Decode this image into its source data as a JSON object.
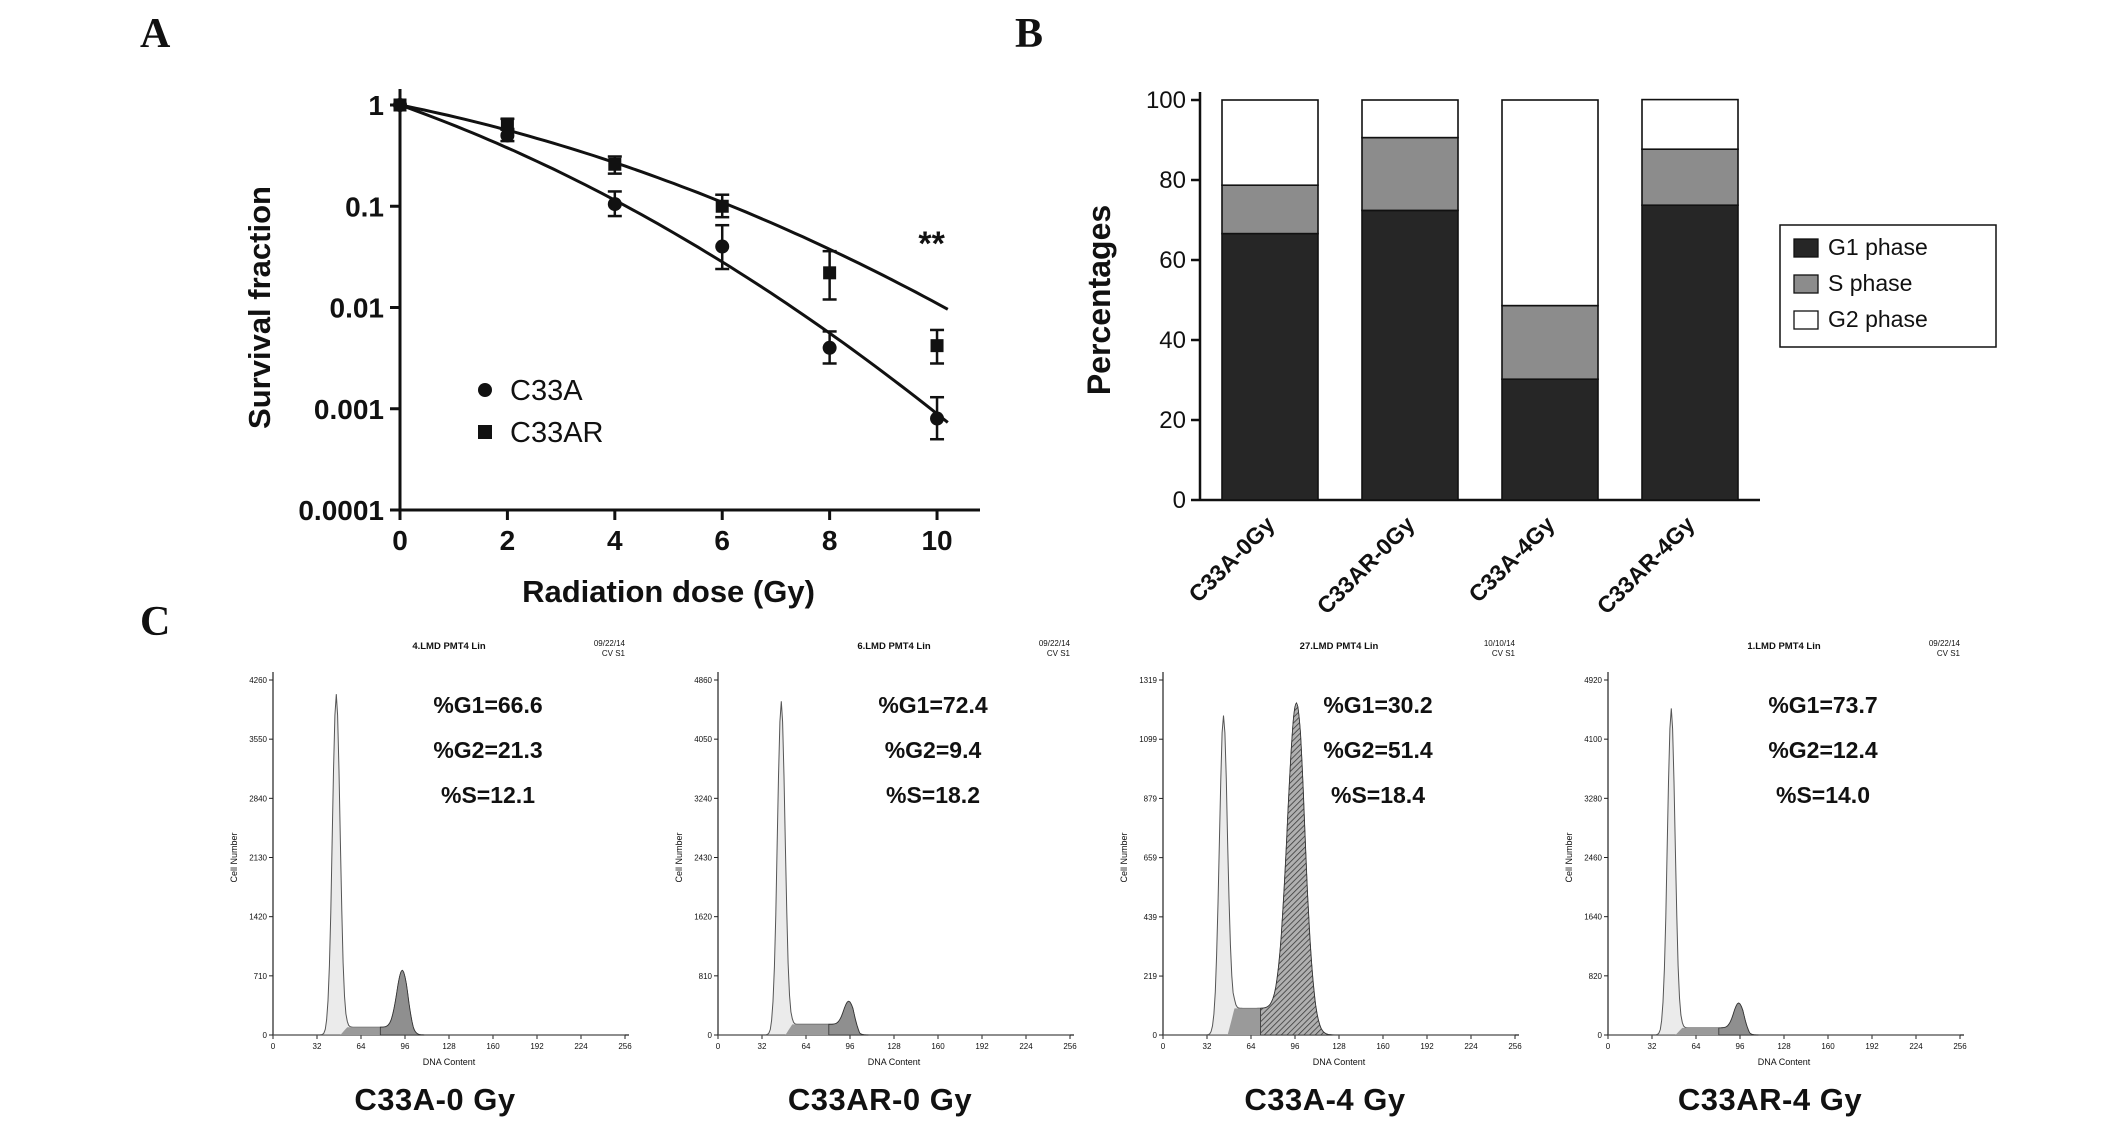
{
  "figure": {
    "background": "#ffffff"
  },
  "panels": {
    "a": {
      "label": "A"
    },
    "b": {
      "label": "B"
    },
    "c": {
      "label": "C"
    }
  },
  "chart_data": [
    {
      "id": "survival-curve",
      "panel": "A",
      "type": "line",
      "xlabel": "Radiation dose (Gy)",
      "ylabel": "Survival fraction",
      "x_ticks": [
        0,
        2,
        4,
        6,
        8,
        10
      ],
      "xlim": [
        0,
        10.8
      ],
      "y_scale": "log10",
      "ylim": [
        0.0001,
        1
      ],
      "y_ticks": [
        1,
        0.1,
        0.01,
        0.001,
        0.0001
      ],
      "y_tick_labels": [
        "1",
        "0.1",
        "0.01",
        "0.001",
        "0.0001"
      ],
      "significance": "**",
      "significance_pos": {
        "x": 9.9,
        "y": 0.033
      },
      "series": [
        {
          "name": "C33A",
          "marker": "circle",
          "x": [
            0,
            2,
            4,
            6,
            8,
            10
          ],
          "y": [
            1,
            0.5,
            0.105,
            0.04,
            0.004,
            0.0008
          ],
          "y_lo": [
            1,
            0.44,
            0.08,
            0.024,
            0.0028,
            0.0005
          ],
          "y_hi": [
            1,
            0.57,
            0.14,
            0.065,
            0.0058,
            0.0013
          ],
          "fit_lq": {
            "alpha": 0.1883,
            "beta": 0.01167
          }
        },
        {
          "name": "C33AR",
          "marker": "square",
          "x": [
            0,
            2,
            4,
            6,
            8,
            10
          ],
          "y": [
            1,
            0.65,
            0.26,
            0.1,
            0.022,
            0.0042
          ],
          "y_lo": [
            1,
            0.58,
            0.21,
            0.078,
            0.012,
            0.0028
          ],
          "y_hi": [
            1,
            0.73,
            0.31,
            0.13,
            0.036,
            0.006
          ],
          "fit_lq": {
            "alpha": 0.1064,
            "beta": 0.00896
          }
        }
      ]
    },
    {
      "id": "cell-cycle-distribution",
      "panel": "B",
      "type": "stacked_bar",
      "ylabel": "Percentages",
      "ylim": [
        0,
        100
      ],
      "y_ticks": [
        0,
        20,
        40,
        60,
        80,
        100
      ],
      "categories": [
        "C33A-0Gy",
        "C33AR-0Gy",
        "C33A-4Gy",
        "C33AR-4Gy"
      ],
      "series": [
        {
          "name": "G1 phase",
          "color": "#262626",
          "values": [
            66.6,
            72.4,
            30.2,
            73.7
          ]
        },
        {
          "name": "S phase",
          "color": "#8c8c8c",
          "values": [
            12.1,
            18.2,
            18.4,
            14.0
          ]
        },
        {
          "name": "G2 phase",
          "color": "#ffffff",
          "values": [
            21.3,
            9.4,
            51.4,
            12.4
          ]
        }
      ],
      "legend_position": "right"
    },
    {
      "id": "flow-cytometry",
      "panel": "C",
      "type": "histogram_set",
      "xlabel": "DNA Content",
      "ylabel": "Cell Number",
      "x_ticks": [
        0,
        32,
        64,
        96,
        128,
        160,
        192,
        224,
        256
      ],
      "xlim": [
        0,
        256
      ],
      "panels": [
        {
          "header": "4.LMD PMT4 Lin",
          "date": "09/22/14",
          "corner": "CV S1",
          "caption": "C33A-0 Gy",
          "y_max": 4260,
          "y_ticks": [
            0,
            710,
            1420,
            2130,
            2840,
            3550,
            4260
          ],
          "stats": [
            "%G1=66.6",
            "%G2=21.3",
            "%S=12.1"
          ],
          "g1_peak": {
            "center": 46,
            "height_frac": 0.96,
            "width": 2.8
          },
          "g2_peak": {
            "center": 94,
            "height_frac": 0.16,
            "width": 4.0,
            "hatch": false
          },
          "s_level_frac": 0.022
        },
        {
          "header": "6.LMD PMT4 Lin",
          "date": "09/22/14",
          "corner": "CV S1",
          "caption": "C33AR-0 Gy",
          "y_max": 4860,
          "y_ticks": [
            0,
            810,
            1620,
            2430,
            3240,
            4050,
            4860
          ],
          "stats": [
            "%G1=72.4",
            "%G2=9.4",
            "%S=18.2"
          ],
          "g1_peak": {
            "center": 46,
            "height_frac": 0.94,
            "width": 2.8
          },
          "g2_peak": {
            "center": 95,
            "height_frac": 0.065,
            "width": 3.6,
            "hatch": false
          },
          "s_level_frac": 0.03
        },
        {
          "header": "27.LMD PMT4 Lin",
          "date": "10/10/14",
          "corner": "CV S1",
          "caption": "C33A-4 Gy",
          "y_max": 1319,
          "y_ticks": [
            0,
            219,
            439,
            659,
            879,
            1099,
            1319
          ],
          "stats": [
            "%G1=30.2",
            "%G2=51.4",
            "%S=18.4"
          ],
          "g1_peak": {
            "center": 44,
            "height_frac": 0.9,
            "width": 3.0
          },
          "g2_peak": {
            "center": 97,
            "height_frac": 0.86,
            "width": 6.5,
            "hatch": true
          },
          "s_level_frac": 0.075
        },
        {
          "header": "1.LMD PMT4 Lin",
          "date": "09/22/14",
          "corner": "CV S1",
          "caption": "C33AR-4 Gy",
          "y_max": 4920,
          "y_ticks": [
            0,
            820,
            1640,
            2460,
            3280,
            4100,
            4920
          ],
          "stats": [
            "%G1=73.7",
            "%G2=12.4",
            "%S=14.0"
          ],
          "g1_peak": {
            "center": 46,
            "height_frac": 0.92,
            "width": 2.8
          },
          "g2_peak": {
            "center": 95,
            "height_frac": 0.07,
            "width": 3.6,
            "hatch": false
          },
          "s_level_frac": 0.02
        }
      ]
    }
  ]
}
